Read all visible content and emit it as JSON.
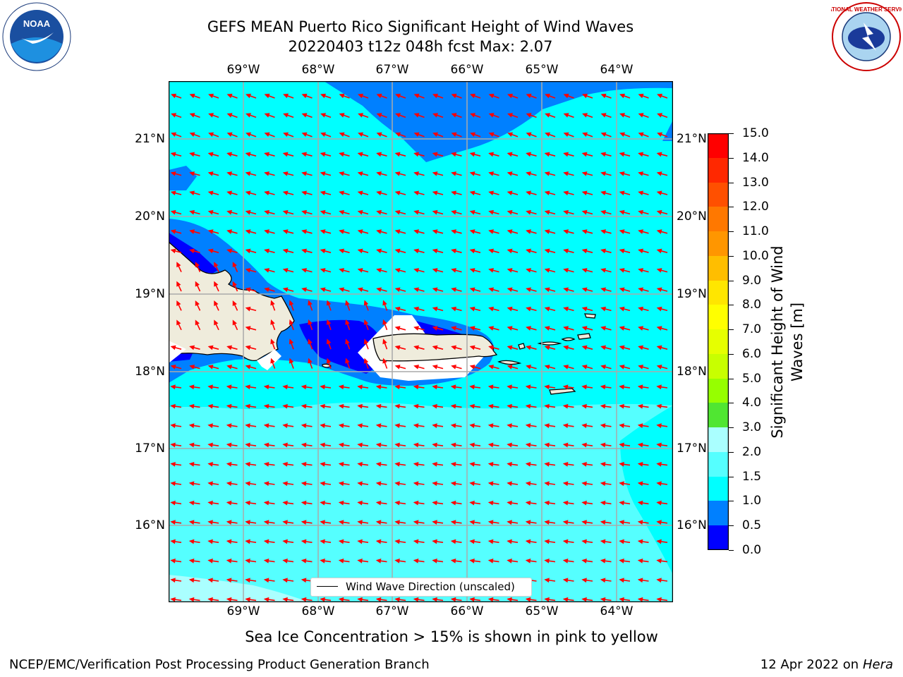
{
  "title_line1": "GEFS MEAN Puerto Rico Significant Height of Wind Waves",
  "title_line2": "20220403 t12z 048h fcst   Max: 2.07",
  "lon_labels": [
    "69°W",
    "68°W",
    "67°W",
    "66°W",
    "65°W",
    "64°W"
  ],
  "lat_labels": [
    "21°N",
    "20°N",
    "19°N",
    "18°N",
    "17°N",
    "16°N"
  ],
  "colorbar": {
    "title": "Significant Height of Wind Waves [m]",
    "title_line1": "Significant Height of Wind",
    "title_line2": "Waves [m]",
    "ticks": [
      "15.0",
      "14.0",
      "13.0",
      "12.0",
      "11.0",
      "10.0",
      "9.0",
      "8.0",
      "7.0",
      "6.0",
      "5.0",
      "4.0",
      "3.0",
      "2.0",
      "1.5",
      "1.0",
      "0.5",
      "0.0"
    ],
    "colors_top_to_bottom": [
      "#ff0000",
      "#ff2800",
      "#ff5000",
      "#ff7800",
      "#ff9600",
      "#ffbe00",
      "#ffe600",
      "#ffff00",
      "#e6ff00",
      "#c8ff00",
      "#96ff00",
      "#50e632",
      "#00e600",
      "#00c800",
      "#50f080",
      "#aaffff",
      "#55ffff",
      "#00ffff",
      "#0080ff",
      "#0000ff"
    ]
  },
  "legend_label": "Wind Wave Direction (unscaled)",
  "sea_ice_note": "Sea Ice Concentration > 15% is shown in pink to yellow",
  "footer_left": "NCEP/EMC/Verification Post Processing Product Generation Branch",
  "footer_date": "12 Apr 2022 on ",
  "footer_machine": "Hera",
  "logos": {
    "left": "NOAA",
    "right": "NATIONAL WEATHER SERVICE"
  },
  "map_colors": {
    "ocean_default": "#55ffff",
    "band_0_5_1": "#0080ff",
    "band_1_1_5": "#00ffff",
    "band_0_0_5": "#0000ff",
    "band_2_3": "#aaffff",
    "land": "#efecdc",
    "arrow": "#ff0000"
  }
}
